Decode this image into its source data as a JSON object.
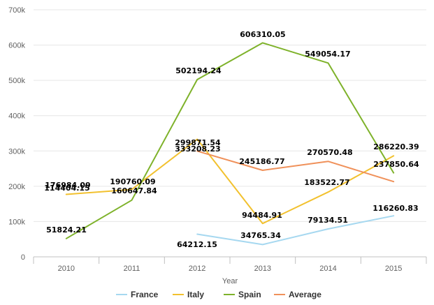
{
  "chart_data": {
    "type": "line",
    "xlabel": "Year",
    "ylabel": "",
    "categories": [
      "2010",
      "2011",
      "2012",
      "2013",
      "2014",
      "2015"
    ],
    "ylim": [
      0,
      700000
    ],
    "yticks": [
      0,
      100000,
      200000,
      300000,
      400000,
      500000,
      600000,
      700000
    ],
    "ytick_labels": [
      "0",
      "100k",
      "200k",
      "300k",
      "400k",
      "500k",
      "600k",
      "700k"
    ],
    "grid": true,
    "legend_position": "bottom",
    "series": [
      {
        "name": "France",
        "color": "#a6d8f0",
        "values": [
          null,
          null,
          64212.15,
          34765.34,
          79134.51,
          116260.83
        ],
        "labels": [
          null,
          null,
          "64212.15",
          "34765.34",
          "79134.51",
          "116260.83"
        ]
      },
      {
        "name": "Italy",
        "color": "#f2c12e",
        "values": [
          176984.09,
          190760.09,
          333208.23,
          94484.91,
          183522.77,
          286220.39
        ],
        "labels": [
          "176984.09",
          "190760.09",
          "333208.23",
          "94484.91",
          "183522.77",
          "286220.39"
        ]
      },
      {
        "name": "Spain",
        "color": "#7eb22a",
        "values": [
          51824.21,
          160647.84,
          502194.24,
          606310.05,
          549054.17,
          237850.64
        ],
        "labels": [
          "51824.21",
          "160647.84",
          "502194.24",
          "606310.05",
          "549054.17",
          "237850.64"
        ]
      },
      {
        "name": "Average",
        "color": "#f0915a",
        "values": [
          114404.15,
          null,
          299871.54,
          245186.77,
          270570.48,
          213250
        ],
        "labels": [
          "114404.15",
          null,
          "299871.54",
          "245186.77",
          "270570.48",
          null
        ]
      }
    ]
  }
}
